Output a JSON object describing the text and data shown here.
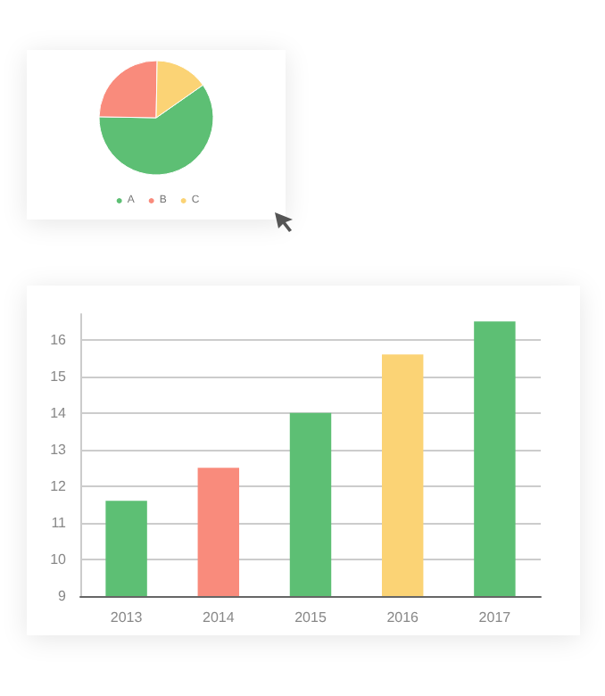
{
  "chart_data": [
    {
      "type": "pie",
      "categories": [
        "A",
        "B",
        "C"
      ],
      "values": [
        60,
        25,
        15
      ],
      "colors": [
        "#5dbf74",
        "#f98b7c",
        "#fbd375"
      ],
      "legend": "bottom"
    },
    {
      "type": "bar",
      "categories": [
        "2013",
        "2014",
        "2015",
        "2016",
        "2017"
      ],
      "values": [
        11.6,
        12.5,
        14,
        15.6,
        16.5
      ],
      "colors": [
        "#5dbf74",
        "#f98b7c",
        "#5dbf74",
        "#fbd375",
        "#5dbf74"
      ],
      "ylim": [
        9,
        16.7
      ],
      "yticks": [
        9,
        10,
        11,
        12,
        13,
        14,
        15,
        16
      ],
      "grid": "y"
    }
  ]
}
